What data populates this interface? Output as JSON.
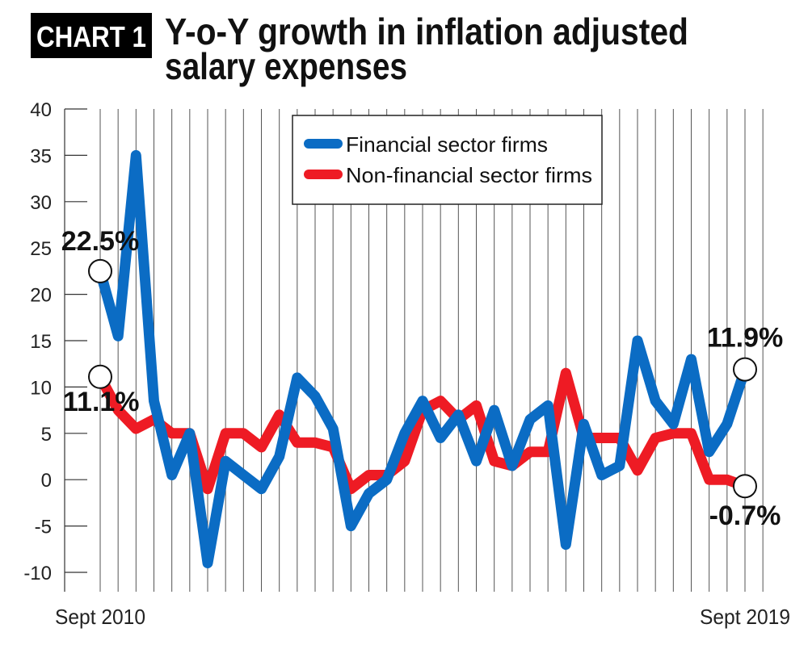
{
  "badge": "CHART 1",
  "title": {
    "line1": "Y-o-Y growth in inflation adjusted",
    "line2": "salary expenses"
  },
  "colors": {
    "financial": "#0b6cc4",
    "non_financial": "#ee1b24",
    "badge_bg": "#000000",
    "badge_text": "#ffffff",
    "grid": "#333333"
  },
  "chart_data": {
    "type": "line",
    "title": "Y-o-Y growth in inflation adjusted salary expenses",
    "xlabel": "",
    "ylabel": "",
    "ylim": [
      -10,
      40
    ],
    "yticks": [
      -10,
      -5,
      0,
      5,
      10,
      15,
      20,
      25,
      30,
      35,
      40
    ],
    "x_range": [
      0,
      36
    ],
    "x_tick_labels": [
      {
        "x": 0,
        "label": "Sept 2010"
      },
      {
        "x": 36,
        "label": "Sept 2019"
      }
    ],
    "grid": "vertical lines",
    "legend": "top-center",
    "series": [
      {
        "name": "Financial sector firms",
        "color": "#0b6cc4",
        "x": [
          0,
          1,
          2,
          3,
          4,
          5,
          6,
          7,
          8,
          9,
          10,
          11,
          12,
          13,
          14,
          15,
          16,
          17,
          18,
          19,
          20,
          21,
          22,
          23,
          24,
          25,
          26,
          27,
          28,
          29,
          30,
          31,
          32,
          33,
          34,
          35,
          36
        ],
        "values": [
          22.5,
          15.5,
          35,
          8.5,
          0.5,
          5,
          -9,
          2,
          0.5,
          -1,
          2.5,
          11,
          9,
          5.5,
          -5,
          -1.5,
          0,
          5,
          8.5,
          4.5,
          7,
          2,
          7.5,
          1.5,
          6.5,
          8,
          -7,
          6,
          0.5,
          1.5,
          15,
          8.5,
          6,
          13,
          3,
          6,
          11.9
        ]
      },
      {
        "name": "Non-financial sector firms",
        "color": "#ee1b24",
        "x": [
          0,
          1,
          2,
          3,
          4,
          5,
          6,
          7,
          8,
          9,
          10,
          11,
          12,
          13,
          14,
          15,
          16,
          17,
          18,
          19,
          20,
          21,
          22,
          23,
          24,
          25,
          26,
          27,
          28,
          29,
          30,
          31,
          32,
          33,
          34,
          35,
          36
        ],
        "values": [
          11.1,
          7.5,
          5.5,
          6.5,
          5,
          5,
          -1,
          5,
          5,
          3.5,
          7,
          4,
          4,
          3.5,
          -1,
          0.5,
          0.5,
          2,
          7.5,
          8.5,
          6.5,
          8,
          2,
          1.5,
          3,
          3,
          11.5,
          4.5,
          4.5,
          4.5,
          1,
          4.5,
          5,
          5,
          0,
          0,
          -0.7
        ]
      }
    ],
    "annotations": [
      {
        "label": "22.5%",
        "series": "Financial sector firms",
        "x": 0,
        "y": 22.5
      },
      {
        "label": "11.1%",
        "series": "Non-financial sector firms",
        "x": 0,
        "y": 11.1
      },
      {
        "label": "11.9%",
        "series": "Financial sector firms",
        "x": 36,
        "y": 11.9
      },
      {
        "label": "-0.7%",
        "series": "Non-financial sector firms",
        "x": 36,
        "y": -0.7
      }
    ]
  }
}
